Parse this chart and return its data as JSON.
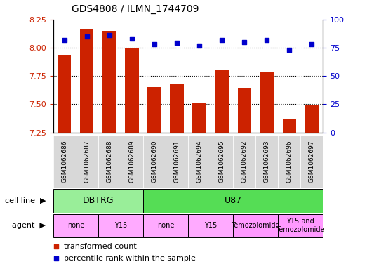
{
  "title": "GDS4808 / ILMN_1744709",
  "samples": [
    "GSM1062686",
    "GSM1062687",
    "GSM1062688",
    "GSM1062689",
    "GSM1062690",
    "GSM1062691",
    "GSM1062694",
    "GSM1062695",
    "GSM1062692",
    "GSM1062693",
    "GSM1062696",
    "GSM1062697"
  ],
  "transformed_count": [
    7.93,
    8.16,
    8.15,
    8.0,
    7.65,
    7.68,
    7.51,
    7.8,
    7.64,
    7.78,
    7.37,
    7.49
  ],
  "percentile_rank": [
    82,
    85,
    86,
    83,
    78,
    79,
    77,
    82,
    80,
    82,
    73,
    78
  ],
  "ylim_left": [
    7.25,
    8.25
  ],
  "ylim_right": [
    0,
    100
  ],
  "yticks_left": [
    7.25,
    7.5,
    7.75,
    8.0,
    8.25
  ],
  "yticks_right": [
    0,
    25,
    50,
    75,
    100
  ],
  "bar_color": "#cc2200",
  "dot_color": "#0000cc",
  "sample_box_color": "#d8d8d8",
  "cell_line_groups": [
    {
      "label": "DBTRG",
      "start": 0,
      "end": 3,
      "color": "#99ee99"
    },
    {
      "label": "U87",
      "start": 4,
      "end": 11,
      "color": "#55dd55"
    }
  ],
  "agent_groups": [
    {
      "label": "none",
      "start": 0,
      "end": 1,
      "color": "#ffaaff"
    },
    {
      "label": "Y15",
      "start": 2,
      "end": 3,
      "color": "#ffaaff"
    },
    {
      "label": "none",
      "start": 4,
      "end": 5,
      "color": "#ffaaff"
    },
    {
      "label": "Y15",
      "start": 6,
      "end": 7,
      "color": "#ffaaff"
    },
    {
      "label": "Temozolomide",
      "start": 8,
      "end": 9,
      "color": "#ff99ff"
    },
    {
      "label": "Y15 and\nTemozolomide",
      "start": 10,
      "end": 11,
      "color": "#ff99ff"
    }
  ],
  "legend_items": [
    {
      "label": "transformed count",
      "color": "#cc2200"
    },
    {
      "label": "percentile rank within the sample",
      "color": "#0000cc"
    }
  ],
  "background_color": "#ffffff",
  "cell_line_row_label": "cell line",
  "agent_row_label": "agent"
}
